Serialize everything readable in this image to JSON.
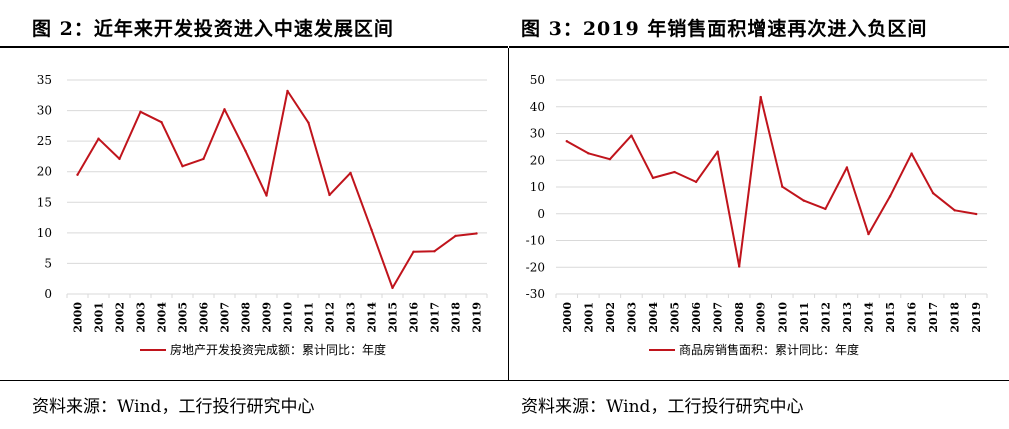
{
  "figures": [
    {
      "title": "图 2：近年来开发投资进入中速发展区间",
      "source": "资料来源：Wind，工行投行研究中心"
    },
    {
      "title": "图 3：2019 年销售面积增速再次进入负区间",
      "source": "资料来源：Wind，工行投行研究中心"
    }
  ],
  "colors": {
    "line": "#C0141C",
    "grid": "#D9D9D9",
    "text": "#000000"
  },
  "chart_data": [
    {
      "type": "line",
      "title": "图 2：近年来开发投资进入中速发展区间",
      "xlabel": "",
      "ylabel": "",
      "categories": [
        "2000",
        "2001",
        "2002",
        "2003",
        "2004",
        "2005",
        "2006",
        "2007",
        "2008",
        "2009",
        "2010",
        "2011",
        "2012",
        "2013",
        "2014",
        "2015",
        "2016",
        "2017",
        "2018",
        "2019"
      ],
      "ylim": [
        0,
        35
      ],
      "yticks": [
        0,
        5,
        10,
        15,
        20,
        25,
        30,
        35
      ],
      "grid": true,
      "legend": "bottom",
      "series": [
        {
          "name": "房地产开发投资完成额：累计同比：年度",
          "values": [
            19.5,
            25.4,
            22.1,
            29.8,
            28.1,
            20.9,
            22.1,
            30.2,
            23.4,
            16.1,
            33.2,
            28.0,
            16.2,
            19.8,
            10.5,
            1.0,
            6.9,
            7.0,
            9.5,
            9.9
          ]
        }
      ]
    },
    {
      "type": "line",
      "title": "图 3：2019 年销售面积增速再次进入负区间",
      "xlabel": "",
      "ylabel": "",
      "categories": [
        "2000",
        "2001",
        "2002",
        "2003",
        "2004",
        "2005",
        "2006",
        "2007",
        "2008",
        "2009",
        "2010",
        "2011",
        "2012",
        "2013",
        "2014",
        "2015",
        "2016",
        "2017",
        "2018",
        "2019"
      ],
      "ylim": [
        -30,
        50
      ],
      "yticks": [
        -30,
        -20,
        -10,
        0,
        10,
        20,
        30,
        40,
        50
      ],
      "grid": true,
      "legend": "bottom",
      "series": [
        {
          "name": "商品房销售面积：累计同比：年度",
          "values": [
            27.1,
            22.6,
            20.4,
            29.2,
            13.4,
            15.6,
            11.9,
            23.2,
            -19.7,
            43.6,
            10.1,
            4.9,
            1.8,
            17.3,
            -7.6,
            6.5,
            22.5,
            7.7,
            1.3,
            -0.1
          ]
        }
      ]
    }
  ]
}
